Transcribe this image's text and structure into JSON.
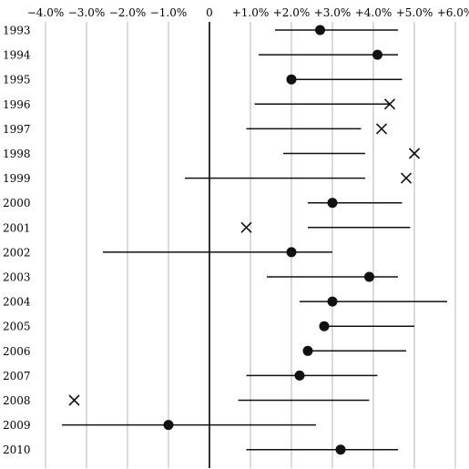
{
  "chart_data": {
    "type": "scatter",
    "subtype": "interval-forest-plot",
    "title": "",
    "xlabel": "",
    "ylabel": "",
    "xlim": [
      -4.0,
      6.0
    ],
    "x_ticks": [
      {
        "value": -4.0,
        "label": "−4.0%"
      },
      {
        "value": -3.0,
        "label": "−3.0%"
      },
      {
        "value": -2.0,
        "label": "−2.0%"
      },
      {
        "value": -1.0,
        "label": "−1.0%"
      },
      {
        "value": 0,
        "label": "0"
      },
      {
        "value": 1.0,
        "label": "+1.0%"
      },
      {
        "value": 2.0,
        "label": "+2.0%"
      },
      {
        "value": 3.0,
        "label": "+3.0%"
      },
      {
        "value": 4.0,
        "label": "+4.0%"
      },
      {
        "value": 5.0,
        "label": "+5.0%"
      },
      {
        "value": 6.0,
        "label": "+6.0%"
      }
    ],
    "grid": "vertical",
    "legend": "none",
    "markers": {
      "inside": "filled-circle",
      "outside": "x-cross"
    },
    "rows": [
      {
        "year": "1993",
        "low": 1.6,
        "high": 4.6,
        "value": 2.7,
        "marker": "circle"
      },
      {
        "year": "1994",
        "low": 1.2,
        "high": 4.6,
        "value": 4.1,
        "marker": "circle"
      },
      {
        "year": "1995",
        "low": 2.0,
        "high": 4.7,
        "value": 2.0,
        "marker": "circle"
      },
      {
        "year": "1996",
        "low": 1.1,
        "high": 4.4,
        "value": 4.4,
        "marker": "cross"
      },
      {
        "year": "1997",
        "low": 0.9,
        "high": 3.7,
        "value": 4.2,
        "marker": "cross"
      },
      {
        "year": "1998",
        "low": 1.8,
        "high": 3.8,
        "value": 5.0,
        "marker": "cross"
      },
      {
        "year": "1999",
        "low": -0.6,
        "high": 3.8,
        "value": 4.8,
        "marker": "cross"
      },
      {
        "year": "2000",
        "low": 2.4,
        "high": 4.7,
        "value": 3.0,
        "marker": "circle"
      },
      {
        "year": "2001",
        "low": 2.4,
        "high": 4.9,
        "value": 0.9,
        "marker": "cross"
      },
      {
        "year": "2002",
        "low": -2.6,
        "high": 3.0,
        "value": 2.0,
        "marker": "circle"
      },
      {
        "year": "2003",
        "low": 1.4,
        "high": 4.6,
        "value": 3.9,
        "marker": "circle"
      },
      {
        "year": "2004",
        "low": 2.2,
        "high": 5.8,
        "value": 3.0,
        "marker": "circle"
      },
      {
        "year": "2005",
        "low": 2.8,
        "high": 5.0,
        "value": 2.8,
        "marker": "circle"
      },
      {
        "year": "2006",
        "low": 2.4,
        "high": 4.8,
        "value": 2.4,
        "marker": "circle"
      },
      {
        "year": "2007",
        "low": 0.9,
        "high": 4.1,
        "value": 2.2,
        "marker": "circle"
      },
      {
        "year": "2008",
        "low": 0.7,
        "high": 3.9,
        "value": -3.3,
        "marker": "cross"
      },
      {
        "year": "2009",
        "low": -3.6,
        "high": 2.6,
        "value": -1.0,
        "marker": "circle"
      },
      {
        "year": "2010",
        "low": 0.9,
        "high": 4.6,
        "value": 3.2,
        "marker": "circle"
      }
    ]
  }
}
